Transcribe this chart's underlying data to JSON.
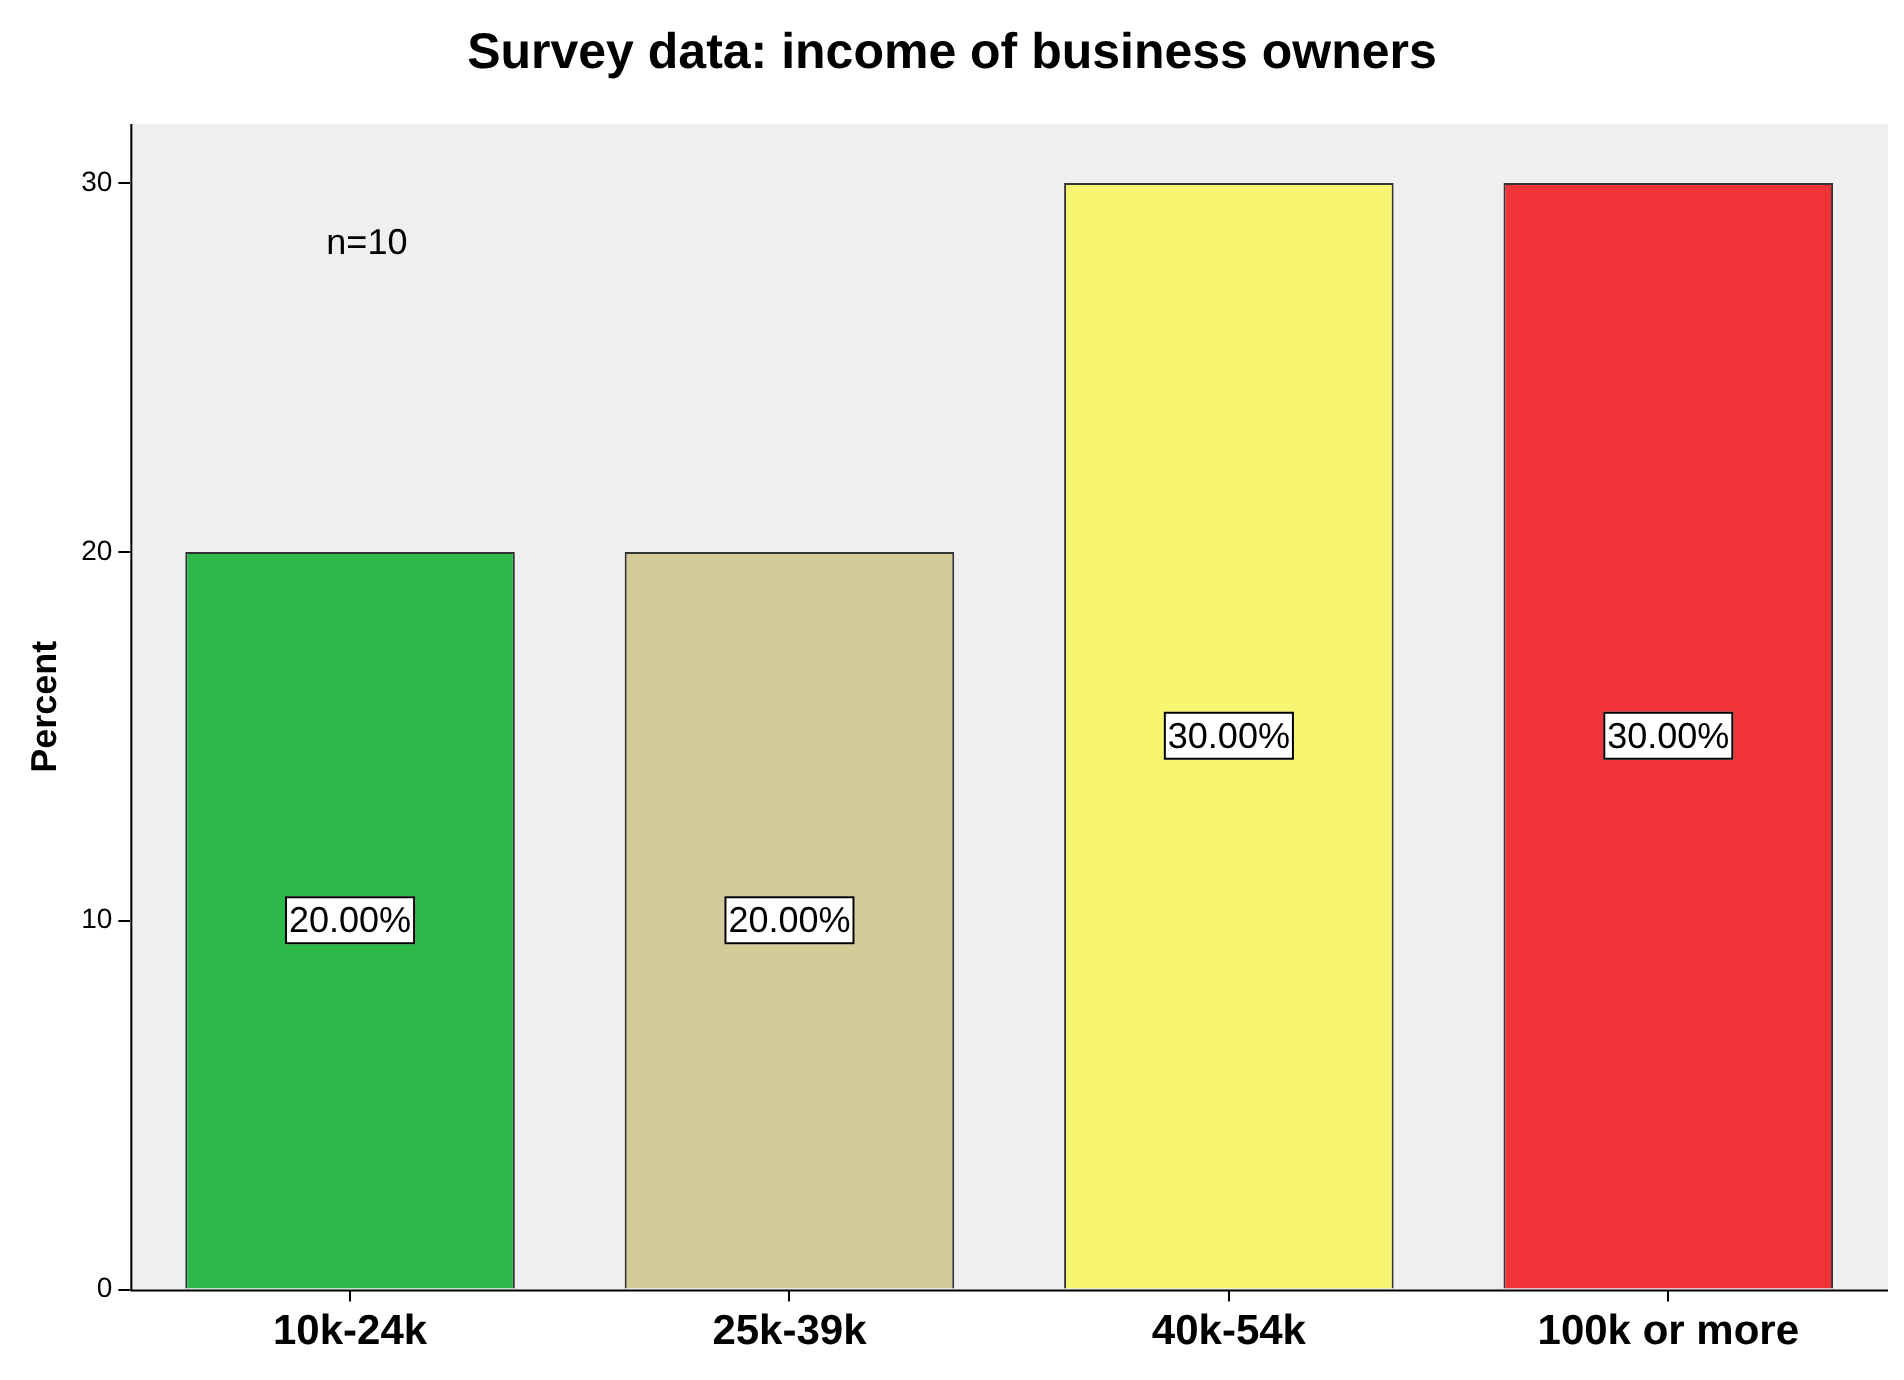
{
  "chart_data": {
    "type": "bar",
    "title": "Survey data: income of business owners",
    "ylabel": "Percent",
    "categories": [
      "10k-24k",
      "25k-39k",
      "40k-54k",
      "100k or more"
    ],
    "values": [
      20,
      20,
      30,
      30
    ],
    "colors": [
      "#2db84a",
      "#d3cc98",
      "#f8f670",
      "#ef3338"
    ],
    "value_labels": [
      "20.00%",
      "20.00%",
      "30.00%",
      "30.00%"
    ],
    "annotations": [
      "n=10"
    ],
    "ylim": [
      0,
      31.6
    ],
    "yticks": [
      0,
      10,
      20,
      30
    ],
    "grid": false,
    "legend": false
  }
}
